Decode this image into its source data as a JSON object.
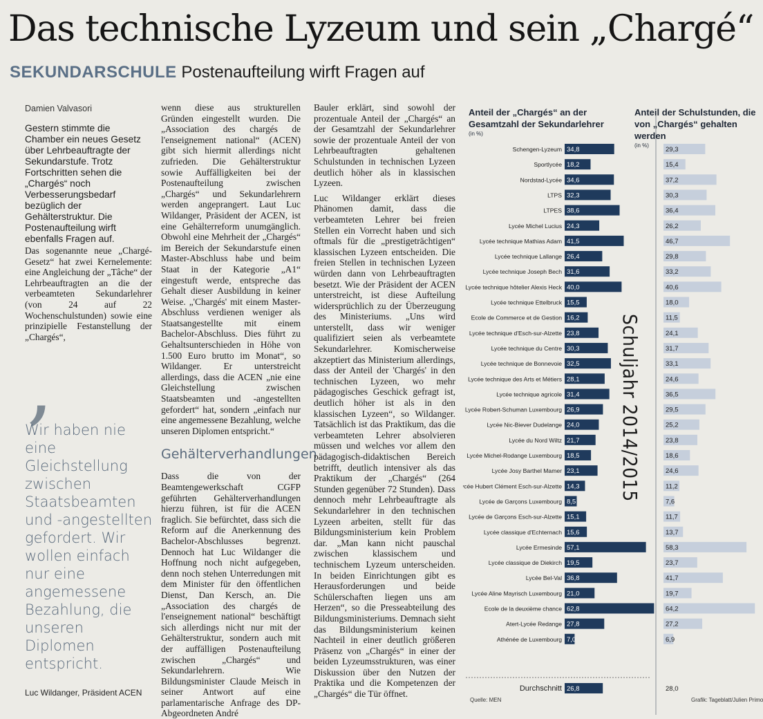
{
  "headline": "Das technische Lyzeum und sein „Chargé“",
  "subhead": {
    "kicker": "SEKUNDARSCHULE",
    "text": "Postenaufteilung wirft Fragen auf"
  },
  "author": "Damien Valvasori",
  "lead": "Gestern stimmte die Chamber ein neues Gesetz über Lehrbeauftragte der Sekundarstufe. Trotz Fortschritten sehen die „Chargés“ noch Verbesserungsbedarf bezüglich der Gehälterstruktur. Die Postenaufteilung wirft ebenfalls Fragen auf.",
  "body1": "Das sogenannte neue „Chargé-Gesetz“ hat zwei Kernelemente: eine Angleichung der „Tâche“ der Lehrbeauftragten an die der verbeamteten Sekundarlehrer (von 24 auf 22 Wochenschulstunden) sowie eine prinzipielle Festanstellung der „Chargés“,",
  "quote": "Wir haben nie eine Gleichstellung zwischen Staatsbeamten und -angestellten gefordert. Wir wollen einfach nur eine angemessene Bezahlung, die unseren Diplomen entspricht.",
  "quote_source": "Luc Wildanger, Präsident ACEN",
  "col2": {
    "p1": "wenn diese aus strukturellen Gründen eingestellt wurden. Die „Association des chargés de l'enseignement national“ (ACEN) gibt sich hiermit allerdings nicht zufrieden. Die Gehälterstruktur sowie Auffälligkeiten bei der Postenaufteilung zwischen „Chargés“ und Sekundarlehrern werden angeprangert. Laut Luc Wildanger, Präsident der ACEN, ist eine Gehälterreform unumgänglich. Obwohl eine Mehrheit der „Chargés“ im Bereich der Sekundarstufe einen Master-Abschluss habe und beim Staat in der Kategorie „A1“ eingestuft werde, entspreche das Gehalt dieser Ausbildung in keiner Weise. „'Chargés' mit einem Master-Abschluss verdienen weniger als Staatsangestellte mit einem Bachelor-Abschluss. Dies führt zu Gehaltsunterschieden in Höhe von 1.500 Euro brutto im Monat“, so Wildanger. Er unterstreicht allerdings, dass die ACEN „nie eine Gleichstellung zwischen Staatsbeamten und -angestellten gefordert“ hat, sondern „einfach nur eine angemessene Bezahlung, welche unseren Diplomen entspricht.“",
    "subtitle": "Gehälterverhandlungen",
    "p2": "Dass die von der Beamtengewerkschaft CGFP geführten Gehälterverhandlungen hierzu führen, ist für die ACEN fraglich. Sie befürchtet, dass sich die Reform auf die Anerkennung des Bachelor-Abschlusses begrenzt. Dennoch hat Luc Wildanger die Hoffnung noch nicht aufgegeben, denn noch stehen Unterredungen mit dem Minister für den öffentlichen Dienst, Dan Kersch, an. Die „Association des chargés de l'enseignement national“ beschäftigt sich allerdings nicht nur mit der Gehälterstruktur, sondern auch mit der auffälligen Postenaufteilung zwischen „Chargés“ und Sekundarlehrern. Wie Bildungsminister Claude Meisch in seiner Antwort auf eine parlamentarische Anfrage des DP-Abgeordneten André"
  },
  "col3": {
    "p1": "Bauler erklärt, sind sowohl der prozentuale Anteil der „Chargés“ an der Gesamtzahl der Sekundarlehrer sowie der prozentuale Anteil der von Lehrbeauftragten gehaltenen Schulstunden in technischen Lyzeen deutlich höher als in klassischen Lyzeen.",
    "p2": "Luc Wildanger erklärt dieses Phänomen damit, dass die verbeamteten Lehrer bei freien Stellen ein Vorrecht haben und sich oftmals für die „prestigeträchtigen“ klassischen Lyzeen entscheiden. Die freien Stellen in technischen Lyzeen würden dann von Lehrbeauftragten besetzt. Wie der Präsident der ACEN unterstreicht, ist diese Aufteilung widersprüchlich zu der Überzeugung des Ministeriums. „Uns wird unterstellt, dass wir weniger qualifiziert seien als verbeamtete Sekundarlehrer. Komischerweise akzeptiert das Ministerium allerdings, dass der Anteil der 'Chargés' in den technischen Lyzeen, wo mehr pädagogisches Geschick gefragt ist, deutlich höher ist als in den klassischen Lyzeen“, so Wildanger. Tatsächlich ist das Praktikum, das die verbeamteten Lehrer absolvieren müssen und welches vor allem den pädagogisch-didaktischen Bereich betrifft, deutlich intensiver als das Praktikum der „Chargés“ (264 Stunden gegenüber 72 Stunden). Dass dennoch mehr Lehrbeauftragte als Sekundarlehrer in den technischen Lyzeen arbeiten, stellt für das Bildungsministerium kein Problem dar. „Man kann nicht pauschal zwischen klassischem und technischem Lyzeum unterscheiden. In beiden Einrichtungen gibt es Herausforderungen und beide Schülerschaften liegen uns am Herzen“, so die Presseabteilung des Bildungsministeriums. Demnach sieht das Bildungsministerium keinen Nachteil in einer deutlich größeren Präsenz von „Chargés“ in einer der beiden Lyzeumsstrukturen, was einer Diskussion über den Nutzen der Praktika und die Kompetenzen der „Chargés“ die Tür öffnet."
  },
  "chart_data": {
    "type": "bar",
    "header_left": "Anteil der „Chargés“ an der Gesamtzahl der Sekundarlehrer",
    "header_right": "Anteil der Schulstunden, die von „Chargés“ gehalten werden",
    "unit": "(in %)",
    "vertical_label": "Schuljahr 2014/2015",
    "categories": [
      "Schengen-Lyzeum",
      "Sportlycée",
      "Nordstad-Lycée",
      "LTPS",
      "LTPES",
      "Lycée Michel Lucius",
      "Lycée technique Mathias Adam",
      "Lycée technique Lallange",
      "Lycée technique Joseph Bech",
      "Lycée technique hôtelier Alexis Heck",
      "Lycée technique Ettelbruck",
      "Ecole de Commerce et de Gestion",
      "Lycée technique d'Esch-sur-Alzette",
      "Lycée technique du Centre",
      "Lycée technique de Bonnevoie",
      "Lycée technique des Arts et Métiers",
      "Lycée technique agricole",
      "Lycée Robert-Schuman Luxembourg",
      "Lycée Nic-Biever Dudelange",
      "Lycée du Nord Wiltz",
      "Lycée Michel-Rodange Luxembourg",
      "Lycée Josy Barthel Mamer",
      "Lycée Hubert Clément Esch-sur-Alzette",
      "Lycée de Garçons Luxembourg",
      "Lycée de Garçons Esch-sur-Alzette",
      "Lycée classique d'Echternach",
      "Lycée Ermesinde",
      "Lycée classique de Diekirch",
      "Lycée Bel-Val",
      "Lycée Aline Mayrisch Luxembourg",
      "Ecole de la deuxième chance",
      "Atert-Lycée Redange",
      "Athénée de Luxembourg"
    ],
    "series": [
      {
        "name": "Anteil der „Chargés“ an der Gesamtzahl der Sekundarlehrer",
        "labels": [
          "34,8",
          "18,2",
          "34,6",
          "32,3",
          "38,6",
          "24,3",
          "41,5",
          "26,4",
          "31,6",
          "40,0",
          "15,5",
          "16,2",
          "23,8",
          "30,3",
          "32,5",
          "28,1",
          "31,4",
          "26,9",
          "24,0",
          "21,7",
          "18,5",
          "23,1",
          "14,3",
          "8,5",
          "15,1",
          "15,6",
          "57,1",
          "19,5",
          "36,8",
          "21,0",
          "62,8",
          "27,8",
          "7,0"
        ],
        "values": [
          34.8,
          18.2,
          34.6,
          32.3,
          38.6,
          24.3,
          41.5,
          26.4,
          31.6,
          40.0,
          15.5,
          16.2,
          23.8,
          30.3,
          32.5,
          28.1,
          31.4,
          26.9,
          24.0,
          21.7,
          18.5,
          23.1,
          14.3,
          8.5,
          15.1,
          15.6,
          57.1,
          19.5,
          36.8,
          21.0,
          62.8,
          27.8,
          7.0
        ]
      },
      {
        "name": "Anteil der Schulstunden, die von „Chargés“ gehalten werden",
        "labels": [
          "29,3",
          "15,4",
          "37,2",
          "30,3",
          "36,4",
          "26,2",
          "46,7",
          "29,8",
          "33,2",
          "40,6",
          "18,0",
          "11,5",
          "24,1",
          "31,7",
          "33,1",
          "24,6",
          "36,5",
          "29,5",
          "25,2",
          "23,8",
          "18,6",
          "24,6",
          "11,2",
          "7,6",
          "11,7",
          "13,7",
          "58,3",
          "23,7",
          "41,7",
          "19,7",
          "64,2",
          "27,2",
          "6,9"
        ],
        "values": [
          29.3,
          15.4,
          37.2,
          30.3,
          36.4,
          26.2,
          46.7,
          29.8,
          33.2,
          40.6,
          18.0,
          11.5,
          24.1,
          31.7,
          33.1,
          24.6,
          36.5,
          29.5,
          25.2,
          23.8,
          18.6,
          24.6,
          11.2,
          7.6,
          11.7,
          13.7,
          58.3,
          23.7,
          41.7,
          19.7,
          64.2,
          27.2,
          6.9
        ]
      }
    ],
    "average": {
      "label": "Durchschnitt",
      "left": "26,8",
      "left_value": 26.8,
      "right": "28,0",
      "right_value": 28.0
    },
    "source": "Quelle: MEN",
    "credit": "Grafik: Tageblatt/Julien Primout",
    "colors": {
      "left_bar": "#1f3a5c",
      "right_bar": "#c6cfdc",
      "bar_text": "#ffffff"
    }
  }
}
